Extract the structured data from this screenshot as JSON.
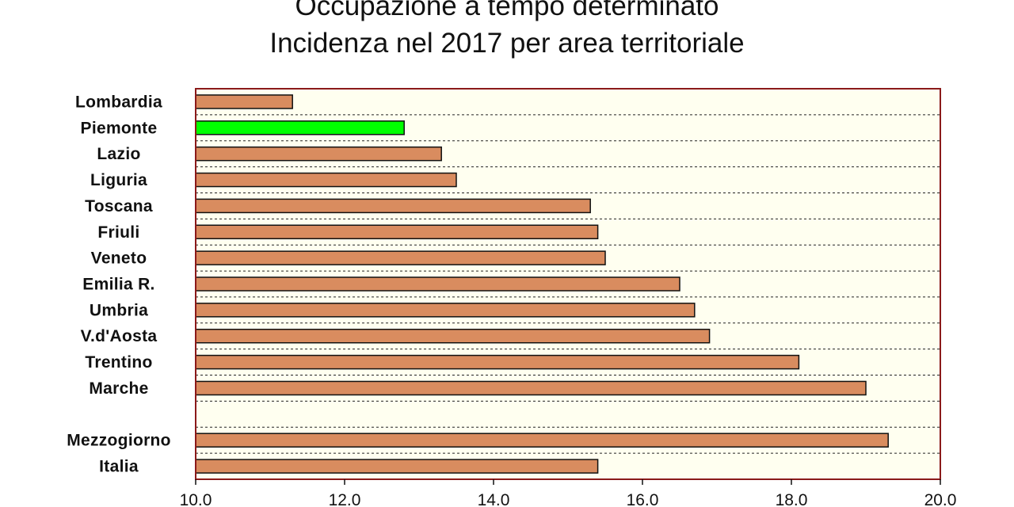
{
  "chart_data": {
    "type": "bar",
    "orientation": "horizontal",
    "title": "Occupazione a tempo determinato",
    "subtitle": "Incidenza nel 2017 per area territoriale",
    "categories": [
      "Lombardia",
      "Piemonte",
      "Lazio",
      "Liguria",
      "Toscana",
      "Friuli",
      "Veneto",
      "Emilia R.",
      "Umbria",
      "V.d'Aosta",
      "Trentino",
      "Marche",
      "",
      "Mezzogiorno",
      "Italia"
    ],
    "values": [
      11.3,
      12.8,
      13.3,
      13.5,
      15.3,
      15.4,
      15.5,
      16.5,
      16.7,
      16.9,
      18.1,
      19.0,
      null,
      19.3,
      15.4
    ],
    "highlight": "Piemonte",
    "xlim": [
      10.0,
      20.0
    ],
    "xticks": [
      "10.0",
      "12.0",
      "14.0",
      "16.0",
      "18.0",
      "20.0"
    ],
    "grid": true,
    "colors": {
      "bar": "#D98C5F",
      "highlight": "#00FF00",
      "plot_background": "#FFFFF0",
      "frame": "#8B1A1A"
    }
  }
}
